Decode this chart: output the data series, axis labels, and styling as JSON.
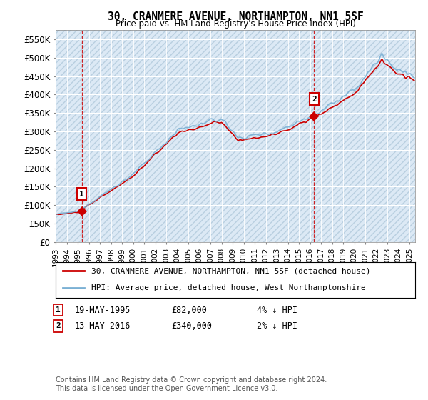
{
  "title": "30, CRANMERE AVENUE, NORTHAMPTON, NN1 5SF",
  "subtitle": "Price paid vs. HM Land Registry's House Price Index (HPI)",
  "background_color": "#dce9f5",
  "red_line_color": "#cc0000",
  "blue_line_color": "#7ab0d4",
  "marker1_date": 1995.37,
  "marker1_value": 82000,
  "marker1_label": "1",
  "marker2_date": 2016.37,
  "marker2_value": 340000,
  "marker2_label": "2",
  "xmin": 1993.0,
  "xmax": 2025.5,
  "ymin": 0,
  "ymax": 575000,
  "yticks": [
    0,
    50000,
    100000,
    150000,
    200000,
    250000,
    300000,
    350000,
    400000,
    450000,
    500000,
    550000
  ],
  "ytick_labels": [
    "£0",
    "£50K",
    "£100K",
    "£150K",
    "£200K",
    "£250K",
    "£300K",
    "£350K",
    "£400K",
    "£450K",
    "£500K",
    "£550K"
  ],
  "legend_red": "30, CRANMERE AVENUE, NORTHAMPTON, NN1 5SF (detached house)",
  "legend_blue": "HPI: Average price, detached house, West Northamptonshire",
  "footer": "Contains HM Land Registry data © Crown copyright and database right 2024.\nThis data is licensed under the Open Government Licence v3.0.",
  "xtick_years": [
    1993,
    1994,
    1995,
    1996,
    1997,
    1998,
    1999,
    2000,
    2001,
    2002,
    2003,
    2004,
    2005,
    2006,
    2007,
    2008,
    2009,
    2010,
    2011,
    2012,
    2013,
    2014,
    2015,
    2016,
    2017,
    2018,
    2019,
    2020,
    2021,
    2022,
    2023,
    2024,
    2025
  ]
}
